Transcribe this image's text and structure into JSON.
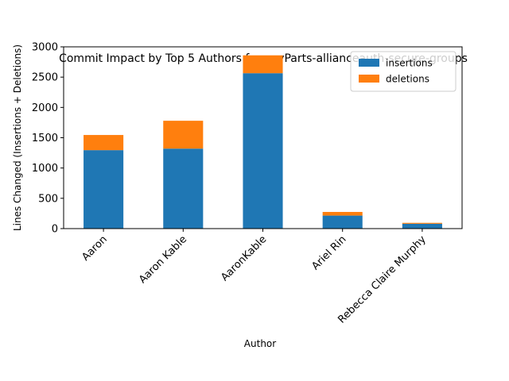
{
  "chart_data": {
    "type": "bar",
    "stacked": true,
    "title": "Commit Impact by Top 5 Authors for pvyParts-allianceauth-secure-groups",
    "xlabel": "Author",
    "ylabel": "Lines Changed (Insertions + Deletions)",
    "categories": [
      "Aaron",
      "Aaron Kable",
      "AaronKable",
      "Ariel Rin",
      "Rebecca Claire Murphy"
    ],
    "series": [
      {
        "name": "insertions",
        "color": "#1f77b4",
        "values": [
          1295,
          1320,
          2565,
          215,
          80
        ]
      },
      {
        "name": "deletions",
        "color": "#ff7f0e",
        "values": [
          250,
          460,
          295,
          60,
          15
        ]
      }
    ],
    "ylim": [
      0,
      3000
    ],
    "yticks": [
      0,
      500,
      1000,
      1500,
      2000,
      2500,
      3000
    ],
    "grid": false,
    "legend_position": "top-right"
  }
}
